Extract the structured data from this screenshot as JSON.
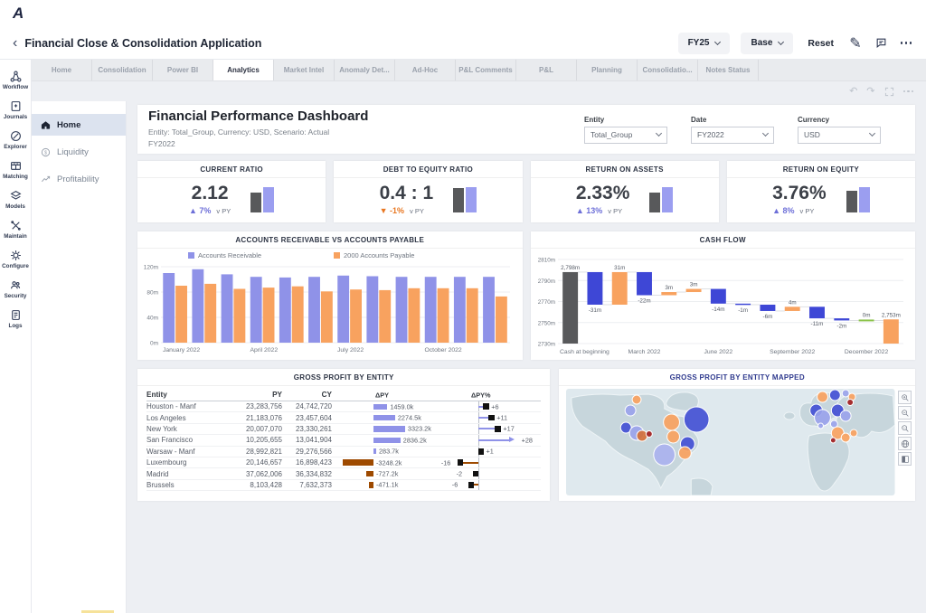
{
  "app": {
    "logo_letter": "A"
  },
  "nav": {
    "back_icon": "‹",
    "title": "Financial Close & Consolidation Application",
    "period_selector": "FY25",
    "version_selector": "Base",
    "reset_label": "Reset"
  },
  "tabs": [
    {
      "label": "Home",
      "active": false
    },
    {
      "label": "Consolidation",
      "active": false
    },
    {
      "label": "Power BI",
      "active": false
    },
    {
      "label": "Analytics",
      "active": true
    },
    {
      "label": "Market Intel",
      "active": false
    },
    {
      "label": "Anomaly Det...",
      "active": false
    },
    {
      "label": "Ad-Hoc",
      "active": false
    },
    {
      "label": "P&L Comments",
      "active": false
    },
    {
      "label": "P&L",
      "active": false
    },
    {
      "label": "Planning",
      "active": false
    },
    {
      "label": "Consolidatio...",
      "active": false
    },
    {
      "label": "Notes Status",
      "active": false
    }
  ],
  "rail_items": [
    {
      "label": "Workflow",
      "icon": "workflow-icon"
    },
    {
      "label": "Journals",
      "icon": "journals-icon"
    },
    {
      "label": "Explorer",
      "icon": "explorer-icon"
    },
    {
      "label": "Matching",
      "icon": "matching-icon"
    },
    {
      "label": "Models",
      "icon": "models-icon"
    },
    {
      "label": "Maintain",
      "icon": "maintain-icon"
    },
    {
      "label": "Configure",
      "icon": "configure-icon"
    },
    {
      "label": "Security",
      "icon": "security-icon"
    },
    {
      "label": "Logs",
      "icon": "logs-icon"
    }
  ],
  "side_nav": [
    {
      "label": "Home",
      "icon": "home-icon",
      "active": true
    },
    {
      "label": "Liquidity",
      "icon": "liquidity-icon",
      "active": false
    },
    {
      "label": "Profitability",
      "icon": "profitability-icon",
      "active": false
    }
  ],
  "dashboard_header": {
    "title": "Financial Performance Dashboard",
    "subtitle_line1": "Entity: Total_Group, Currency: USD, Scenario: Actual",
    "subtitle_line2": "FY2022",
    "filters": [
      {
        "label": "Entity",
        "value": "Total_Group"
      },
      {
        "label": "Date",
        "value": "FY2022"
      },
      {
        "label": "Currency",
        "value": "USD"
      }
    ]
  },
  "kpis": [
    {
      "title": "CURRENT RATIO",
      "value": "2.12",
      "delta": "7%",
      "direction": "up",
      "vs_label": "v PY",
      "py_bar": 0.78,
      "cy_bar": 1.0
    },
    {
      "title": "DEBT TO EQUITY RATIO",
      "value": "0.4 : 1",
      "delta": "-1%",
      "direction": "down",
      "vs_label": "v PY",
      "py_bar": 0.97,
      "cy_bar": 1.0
    },
    {
      "title": "RETURN ON ASSETS",
      "value": "2.33%",
      "delta": "13%",
      "direction": "up",
      "vs_label": "v PY",
      "py_bar": 0.78,
      "cy_bar": 1.0
    },
    {
      "title": "RETURN ON EQUITY",
      "value": "3.76%",
      "delta": "8%",
      "direction": "up",
      "vs_label": "v PY",
      "py_bar": 0.85,
      "cy_bar": 1.0
    }
  ],
  "colors": {
    "purple": "#8f92e8",
    "orange": "#f8a25f",
    "waterfall_blue": "#3e47d6",
    "bar_gray": "#58595b",
    "brown": "#9e4a00",
    "up": "#6d6fd8",
    "down": "#e87722",
    "zero_green": "#8bc34a",
    "map_land": "#c7d6dc",
    "map_ocean": "#dfe9ee"
  },
  "chart_data": [
    {
      "type": "bar",
      "title": "ACCOUNTS RECEIVABLE VS ACCOUNTS PAYABLE",
      "categories": [
        "January 2022",
        "February 2022",
        "March 2022",
        "April 2022",
        "May 2022",
        "June 2022",
        "July 2022",
        "August 2022",
        "September 2022",
        "October 2022",
        "November 2022",
        "December 2022"
      ],
      "series": [
        {
          "name": "Accounts Receivable",
          "color": "#8f92e8",
          "values": [
            110,
            116,
            108,
            104,
            103,
            104,
            106,
            105,
            104,
            104,
            104,
            104
          ]
        },
        {
          "name": "2000 Accounts Payable",
          "color": "#f8a25f",
          "values": [
            90,
            93,
            85,
            87,
            89,
            81,
            84,
            83,
            86,
            86,
            86,
            73
          ]
        }
      ],
      "ylim": [
        0,
        120
      ],
      "yticks": [
        {
          "v": 0,
          "label": "0m"
        },
        {
          "v": 40,
          "label": "40m"
        },
        {
          "v": 80,
          "label": "80m"
        },
        {
          "v": 120,
          "label": "120m"
        }
      ],
      "xtick_indices": [
        0,
        3,
        6,
        9
      ],
      "xtick_labels": [
        "January 2022",
        "April 2022",
        "July 2022",
        "October 2022"
      ],
      "legend_position": "top"
    },
    {
      "type": "waterfall",
      "title": "CASH FLOW",
      "ylim": [
        2730,
        2810
      ],
      "yticks": [
        {
          "v": 2730,
          "label": "2730m"
        },
        {
          "v": 2750,
          "label": "2750m"
        },
        {
          "v": 2770,
          "label": "2770m"
        },
        {
          "v": 2790,
          "label": "2790m"
        },
        {
          "v": 2810,
          "label": "2810m"
        }
      ],
      "items": [
        {
          "label": "Cash at beginning",
          "value": 2798,
          "display": "2,798m",
          "kind": "total-start"
        },
        {
          "label": "January 2022",
          "value": -31,
          "display": "-31m",
          "kind": "delta"
        },
        {
          "label": "February 2022",
          "value": 31,
          "display": "31m",
          "kind": "delta"
        },
        {
          "label": "March 2022",
          "value": -22,
          "display": "-22m",
          "kind": "delta"
        },
        {
          "label": "April 2022",
          "value": 3,
          "display": "3m",
          "kind": "delta"
        },
        {
          "label": "May 2022",
          "value": 3,
          "display": "3m",
          "kind": "delta"
        },
        {
          "label": "June 2022",
          "value": -14,
          "display": "-14m",
          "kind": "delta"
        },
        {
          "label": "July 2022",
          "value": -1,
          "display": "-1m",
          "kind": "delta"
        },
        {
          "label": "August 2022",
          "value": -6,
          "display": "-6m",
          "kind": "delta"
        },
        {
          "label": "September 2022",
          "value": 4,
          "display": "4m",
          "kind": "delta"
        },
        {
          "label": "October 2022",
          "value": -11,
          "display": "-11m",
          "kind": "delta"
        },
        {
          "label": "November 2022",
          "value": -2,
          "display": "-2m",
          "kind": "delta"
        },
        {
          "label": "December 2022",
          "value": 0,
          "display": "0m",
          "kind": "delta"
        },
        {
          "label": "Cash at end",
          "value": 2753,
          "display": "2,753m",
          "kind": "total-end"
        }
      ],
      "xtick_indices": [
        0,
        3,
        6,
        9,
        12
      ],
      "xtick_labels": [
        "Cash at beginning",
        "March 2022",
        "June 2022",
        "September 2022",
        "December 2022"
      ]
    },
    {
      "type": "table",
      "title": "GROSS PROFIT BY ENTITY",
      "columns": [
        "Entity",
        "PY",
        "CY",
        "ΔPY",
        "ΔPY%"
      ],
      "rows": [
        {
          "entity": "Houston - Manf",
          "py": "23,283,756",
          "cy": "24,742,720",
          "dpy_k": 1459.0,
          "dpy_label": "1459.0k",
          "dpyp": 6,
          "dpyp_label": "+6"
        },
        {
          "entity": "Los Angeles",
          "py": "21,183,076",
          "cy": "23,457,604",
          "dpy_k": 2274.5,
          "dpy_label": "2274.5k",
          "dpyp": 11,
          "dpyp_label": "+11"
        },
        {
          "entity": "New York",
          "py": "20,007,070",
          "cy": "23,330,261",
          "dpy_k": 3323.2,
          "dpy_label": "3323.2k",
          "dpyp": 17,
          "dpyp_label": "+17"
        },
        {
          "entity": "San Francisco",
          "py": "10,205,655",
          "cy": "13,041,904",
          "dpy_k": 2836.2,
          "dpy_label": "2836.2k",
          "dpyp": 28,
          "dpyp_label": "+28",
          "arrow": true
        },
        {
          "entity": "Warsaw - Manf",
          "py": "28,992,821",
          "cy": "29,276,566",
          "dpy_k": 283.7,
          "dpy_label": "283.7k",
          "dpyp": 1,
          "dpyp_label": "+1"
        },
        {
          "entity": "Luxembourg",
          "py": "20,146,657",
          "cy": "16,898,423",
          "dpy_k": -3248.2,
          "dpy_label": "-3248.2k",
          "dpyp": -16,
          "dpyp_label": "-16"
        },
        {
          "entity": "Madrid",
          "py": "37,062,006",
          "cy": "36,334,832",
          "dpy_k": -727.2,
          "dpy_label": "-727.2k",
          "dpyp": -2,
          "dpyp_label": "-2"
        },
        {
          "entity": "Brussels",
          "py": "8,103,428",
          "cy": "7,632,373",
          "dpy_k": -471.1,
          "dpy_label": "-471.1k",
          "dpyp": -6,
          "dpyp_label": "-6"
        }
      ]
    },
    {
      "type": "map",
      "title": "GROSS PROFIT BY ENTITY MAPPED",
      "controls": [
        "zoom-in",
        "zoom-out",
        "zoom-selection",
        "globe",
        "layers"
      ],
      "bubbles": [
        {
          "x": 79,
          "y": 12,
          "r": 5,
          "color": "#f8a25f"
        },
        {
          "x": 72,
          "y": 24,
          "r": 6,
          "color": "#9aa3ea"
        },
        {
          "x": 67,
          "y": 43,
          "r": 6,
          "color": "#4350d4"
        },
        {
          "x": 79,
          "y": 49,
          "r": 8,
          "color": "#9aa3ea"
        },
        {
          "x": 85,
          "y": 52,
          "r": 6,
          "color": "#d4703a"
        },
        {
          "x": 93,
          "y": 50,
          "r": 3.5,
          "color": "#a21f1f"
        },
        {
          "x": 118,
          "y": 37,
          "r": 9,
          "color": "#f8a25f"
        },
        {
          "x": 146,
          "y": 34,
          "r": 14,
          "color": "#4350d4"
        },
        {
          "x": 120,
          "y": 53,
          "r": 7,
          "color": "#f8a25f"
        },
        {
          "x": 136,
          "y": 61,
          "r": 8,
          "color": "#4350d4"
        },
        {
          "x": 110,
          "y": 73,
          "r": 12,
          "color": "#aab2ee"
        },
        {
          "x": 133,
          "y": 71,
          "r": 7,
          "color": "#f8a25f"
        },
        {
          "x": 287,
          "y": 9,
          "r": 6,
          "color": "#f8a25f"
        },
        {
          "x": 301,
          "y": 7,
          "r": 6,
          "color": "#4350d4"
        },
        {
          "x": 313,
          "y": 5,
          "r": 4,
          "color": "#9aa3ea"
        },
        {
          "x": 320,
          "y": 9,
          "r": 4,
          "color": "#f8a25f"
        },
        {
          "x": 318,
          "y": 15,
          "r": 3.5,
          "color": "#a21f1f"
        },
        {
          "x": 280,
          "y": 24,
          "r": 7,
          "color": "#4350d4"
        },
        {
          "x": 287,
          "y": 32,
          "r": 9,
          "color": "#9aa3ea"
        },
        {
          "x": 304,
          "y": 24,
          "r": 7,
          "color": "#4350d4"
        },
        {
          "x": 313,
          "y": 30,
          "r": 6,
          "color": "#9aa3ea"
        },
        {
          "x": 300,
          "y": 39,
          "r": 4,
          "color": "#9aa3ea"
        },
        {
          "x": 285,
          "y": 41,
          "r": 3,
          "color": "#9aa3ea"
        },
        {
          "x": 304,
          "y": 49,
          "r": 7,
          "color": "#f8a25f"
        },
        {
          "x": 313,
          "y": 54,
          "r": 5,
          "color": "#f8a25f"
        },
        {
          "x": 299,
          "y": 57,
          "r": 3,
          "color": "#a21f1f"
        },
        {
          "x": 322,
          "y": 49,
          "r": 4,
          "color": "#f8a25f"
        }
      ]
    }
  ]
}
